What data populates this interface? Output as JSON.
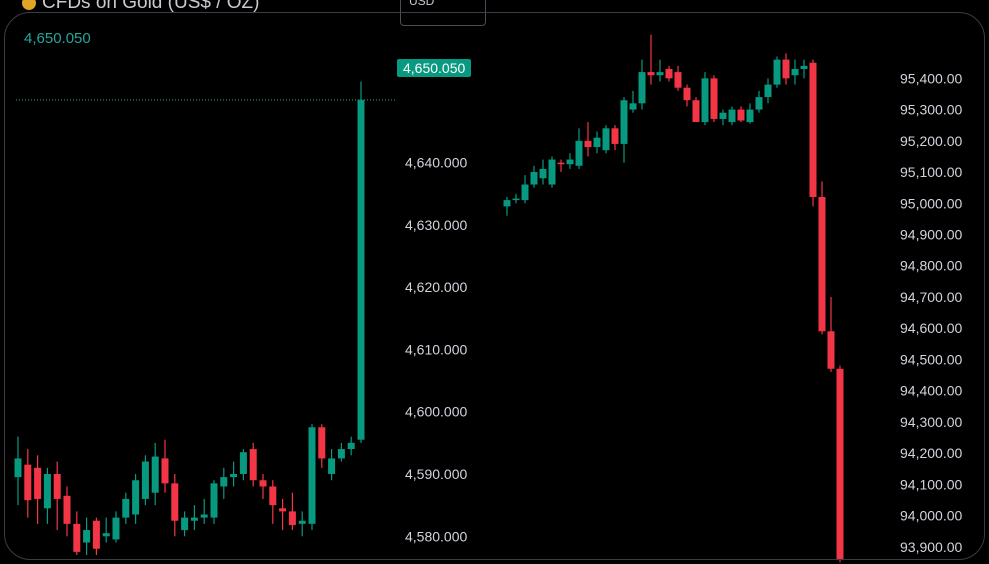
{
  "left_chart": {
    "title": "CFDs on Gold (US$ / OZ)",
    "last_price": "4,650.050",
    "last_price_tag": "4,650.050",
    "currency_selector": "USD",
    "colors": {
      "up": "#089981",
      "down": "#f23645",
      "background": "#000000",
      "text": "#d1d4dc"
    }
  },
  "chart_data": [
    {
      "type": "candlestick",
      "title": "CFDs on Gold (US$ / OZ)",
      "ylim": [
        4577,
        4655
      ],
      "yticks": [
        "4,580.000",
        "4,590.000",
        "4,600.000",
        "4,610.000",
        "4,620.000",
        "4,630.000",
        "4,640.000"
      ],
      "ytick_values": [
        4580,
        4590,
        4600,
        4610,
        4620,
        4630,
        4640
      ],
      "last_value": 4650.05,
      "candles": [
        {
          "o": 4589.5,
          "h": 4596,
          "l": 4585,
          "c": 4592.5
        },
        {
          "o": 4591.5,
          "h": 4594,
          "l": 4583,
          "c": 4585.8
        },
        {
          "o": 4591,
          "h": 4593,
          "l": 4582,
          "c": 4586
        },
        {
          "o": 4584.5,
          "h": 4591,
          "l": 4582,
          "c": 4590
        },
        {
          "o": 4590,
          "h": 4592,
          "l": 4581,
          "c": 4586
        },
        {
          "o": 4586.5,
          "h": 4588,
          "l": 4580,
          "c": 4582
        },
        {
          "o": 4582,
          "h": 4584,
          "l": 4577,
          "c": 4577.5
        },
        {
          "o": 4579,
          "h": 4583,
          "l": 4577,
          "c": 4581
        },
        {
          "o": 4582.5,
          "h": 4583,
          "l": 4577,
          "c": 4578
        },
        {
          "o": 4580,
          "h": 4583,
          "l": 4579,
          "c": 4580.5
        },
        {
          "o": 4579.5,
          "h": 4584,
          "l": 4579,
          "c": 4583
        },
        {
          "o": 4583,
          "h": 4587,
          "l": 4582,
          "c": 4586
        },
        {
          "o": 4583.5,
          "h": 4590,
          "l": 4582,
          "c": 4589
        },
        {
          "o": 4586,
          "h": 4593,
          "l": 4585,
          "c": 4592
        },
        {
          "o": 4587,
          "h": 4595,
          "l": 4585,
          "c": 4592.8
        },
        {
          "o": 4592.5,
          "h": 4595.5,
          "l": 4587,
          "c": 4588.5
        },
        {
          "o": 4588.5,
          "h": 4590,
          "l": 4580,
          "c": 4582.5
        },
        {
          "o": 4581,
          "h": 4584,
          "l": 4580,
          "c": 4583
        },
        {
          "o": 4582.5,
          "h": 4585,
          "l": 4581,
          "c": 4583
        },
        {
          "o": 4583,
          "h": 4586,
          "l": 4582,
          "c": 4583.5
        },
        {
          "o": 4583,
          "h": 4589,
          "l": 4582,
          "c": 4588.5
        },
        {
          "o": 4588,
          "h": 4591,
          "l": 4586,
          "c": 4589.5
        },
        {
          "o": 4589.5,
          "h": 4592,
          "l": 4588,
          "c": 4590
        },
        {
          "o": 4590,
          "h": 4594,
          "l": 4589,
          "c": 4593.5
        },
        {
          "o": 4594,
          "h": 4595,
          "l": 4588,
          "c": 4589
        },
        {
          "o": 4589,
          "h": 4590,
          "l": 4586,
          "c": 4588
        },
        {
          "o": 4588,
          "h": 4589,
          "l": 4582,
          "c": 4585
        },
        {
          "o": 4584.5,
          "h": 4586,
          "l": 4581,
          "c": 4584
        },
        {
          "o": 4584,
          "h": 4587,
          "l": 4581,
          "c": 4581.8
        },
        {
          "o": 4582,
          "h": 4584,
          "l": 4580,
          "c": 4582.5
        },
        {
          "o": 4582,
          "h": 4598,
          "l": 4581,
          "c": 4597.5
        },
        {
          "o": 4597.5,
          "h": 4598,
          "l": 4591,
          "c": 4592.5
        },
        {
          "o": 4590,
          "h": 4594,
          "l": 4589,
          "c": 4592.5
        },
        {
          "o": 4592.5,
          "h": 4595,
          "l": 4592,
          "c": 4594
        },
        {
          "o": 4594,
          "h": 4596,
          "l": 4593,
          "c": 4595
        },
        {
          "o": 4595.5,
          "h": 4653,
          "l": 4595,
          "c": 4650.05
        }
      ]
    },
    {
      "type": "candlestick",
      "ylim": [
        93880,
        95510
      ],
      "yticks": [
        "93,900.00",
        "94,000.00",
        "94,100.00",
        "94,200.00",
        "94,300.00",
        "94,400.00",
        "94,500.00",
        "94,600.00",
        "94,700.00",
        "94,800.00",
        "94,900.00",
        "95,000.00",
        "95,100.00",
        "95,200.00",
        "95,300.00",
        "95,400.00"
      ],
      "ytick_values": [
        93900,
        94000,
        94100,
        94200,
        94300,
        94400,
        94500,
        94600,
        94700,
        94800,
        94900,
        95000,
        95100,
        95200,
        95300,
        95400
      ],
      "candles": [
        {
          "o": 94990,
          "h": 95020,
          "l": 94960,
          "c": 95010
        },
        {
          "o": 95010,
          "h": 95030,
          "l": 95000,
          "c": 95015
        },
        {
          "o": 95010,
          "h": 95090,
          "l": 95000,
          "c": 95060
        },
        {
          "o": 95060,
          "h": 95120,
          "l": 95050,
          "c": 95100
        },
        {
          "o": 95080,
          "h": 95140,
          "l": 95060,
          "c": 95110
        },
        {
          "o": 95060,
          "h": 95150,
          "l": 95050,
          "c": 95140
        },
        {
          "o": 95130,
          "h": 95140,
          "l": 95100,
          "c": 95125
        },
        {
          "o": 95125,
          "h": 95160,
          "l": 95110,
          "c": 95140
        },
        {
          "o": 95120,
          "h": 95240,
          "l": 95110,
          "c": 95200
        },
        {
          "o": 95200,
          "h": 95260,
          "l": 95150,
          "c": 95180
        },
        {
          "o": 95180,
          "h": 95230,
          "l": 95160,
          "c": 95210
        },
        {
          "o": 95170,
          "h": 95250,
          "l": 95160,
          "c": 95240
        },
        {
          "o": 95240,
          "h": 95250,
          "l": 95170,
          "c": 95190
        },
        {
          "o": 95190,
          "h": 95340,
          "l": 95130,
          "c": 95330
        },
        {
          "o": 95300,
          "h": 95360,
          "l": 95290,
          "c": 95320
        },
        {
          "o": 95320,
          "h": 95460,
          "l": 95300,
          "c": 95420
        },
        {
          "o": 95420,
          "h": 95540,
          "l": 95380,
          "c": 95410
        },
        {
          "o": 95410,
          "h": 95460,
          "l": 95390,
          "c": 95420
        },
        {
          "o": 95430,
          "h": 95440,
          "l": 95390,
          "c": 95400
        },
        {
          "o": 95420,
          "h": 95440,
          "l": 95360,
          "c": 95370
        },
        {
          "o": 95370,
          "h": 95380,
          "l": 95310,
          "c": 95330
        },
        {
          "o": 95330,
          "h": 95340,
          "l": 95260,
          "c": 95260
        },
        {
          "o": 95260,
          "h": 95420,
          "l": 95250,
          "c": 95400
        },
        {
          "o": 95400,
          "h": 95410,
          "l": 95260,
          "c": 95270
        },
        {
          "o": 95270,
          "h": 95300,
          "l": 95250,
          "c": 95290
        },
        {
          "o": 95260,
          "h": 95310,
          "l": 95250,
          "c": 95300
        },
        {
          "o": 95300,
          "h": 95310,
          "l": 95260,
          "c": 95265
        },
        {
          "o": 95260,
          "h": 95320,
          "l": 95255,
          "c": 95300
        },
        {
          "o": 95300,
          "h": 95360,
          "l": 95290,
          "c": 95340
        },
        {
          "o": 95340,
          "h": 95400,
          "l": 95320,
          "c": 95380
        },
        {
          "o": 95380,
          "h": 95470,
          "l": 95370,
          "c": 95460
        },
        {
          "o": 95460,
          "h": 95480,
          "l": 95380,
          "c": 95400
        },
        {
          "o": 95410,
          "h": 95460,
          "l": 95380,
          "c": 95430
        },
        {
          "o": 95430,
          "h": 95460,
          "l": 95400,
          "c": 95440
        },
        {
          "o": 95450,
          "h": 95460,
          "l": 94990,
          "c": 95020
        },
        {
          "o": 95020,
          "h": 95070,
          "l": 94580,
          "c": 94590
        },
        {
          "o": 94590,
          "h": 94700,
          "l": 94460,
          "c": 94470
        },
        {
          "o": 94470,
          "h": 94480,
          "l": 93850,
          "c": 93860
        }
      ]
    }
  ]
}
